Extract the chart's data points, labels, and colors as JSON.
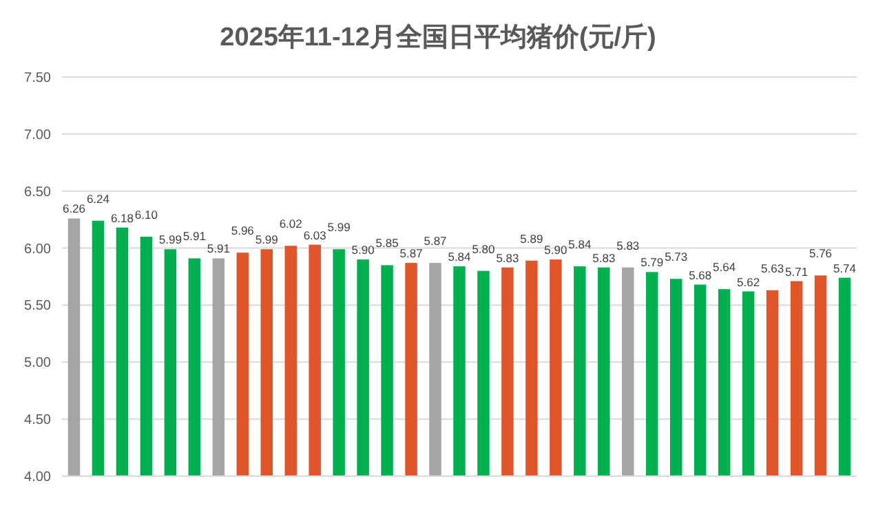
{
  "chart_data": {
    "type": "bar",
    "title": "2025年11-12月全国日平均猪价(元/斤)",
    "categories": [
      null,
      null,
      null,
      null,
      null,
      null,
      null,
      null,
      null,
      null,
      null,
      null,
      null,
      null,
      null,
      null,
      null,
      null,
      null,
      null,
      null,
      null,
      null,
      null,
      null,
      null,
      null,
      null,
      null,
      null,
      null,
      null,
      null
    ],
    "values": [
      6.26,
      6.24,
      6.18,
      6.1,
      5.99,
      5.91,
      5.91,
      5.96,
      5.99,
      6.02,
      6.03,
      5.99,
      5.9,
      5.85,
      5.87,
      5.87,
      5.84,
      5.8,
      5.83,
      5.89,
      5.9,
      5.84,
      5.83,
      5.83,
      5.79,
      5.73,
      5.68,
      5.64,
      5.62,
      5.63,
      5.71,
      5.76,
      5.74
    ],
    "colors": [
      "#a5a5a5",
      "#00b050",
      "#00b050",
      "#00b050",
      "#00b050",
      "#00b050",
      "#a5a5a5",
      "#e0562a",
      "#e0562a",
      "#e0562a",
      "#e0562a",
      "#00b050",
      "#00b050",
      "#00b050",
      "#e0562a",
      "#a5a5a5",
      "#00b050",
      "#00b050",
      "#e0562a",
      "#e0562a",
      "#e0562a",
      "#00b050",
      "#00b050",
      "#a5a5a5",
      "#00b050",
      "#00b050",
      "#00b050",
      "#00b050",
      "#00b050",
      "#e0562a",
      "#e0562a",
      "#e0562a",
      "#00b050"
    ],
    "ylim": [
      4,
      7.5
    ],
    "yticks": [
      {
        "value": 4,
        "label": "4.00"
      },
      {
        "value": 4.5,
        "label": "4.50"
      },
      {
        "value": 5,
        "label": "5.00"
      },
      {
        "value": 5.5,
        "label": "5.50"
      },
      {
        "value": 6,
        "label": "6.00"
      },
      {
        "value": 6.5,
        "label": "6.50"
      },
      {
        "value": 7,
        "label": "7.00"
      },
      {
        "value": 7.5,
        "label": "7.50"
      }
    ],
    "value_labels": [
      "6.26",
      "6.24",
      "6.18",
      "6.10",
      "5.99",
      "5.91",
      "5.91",
      "5.96",
      "5.99",
      "6.02",
      "6.03",
      "5.99",
      "5.90",
      "5.85",
      "5.87",
      "5.87",
      "5.84",
      "5.80",
      "5.83",
      "5.89",
      "5.90",
      "5.84",
      "5.83",
      "5.83",
      "5.79",
      "5.73",
      "5.68",
      "5.64",
      "5.62",
      "5.63",
      "5.71",
      "5.76",
      "5.74"
    ],
    "grid": "y"
  }
}
